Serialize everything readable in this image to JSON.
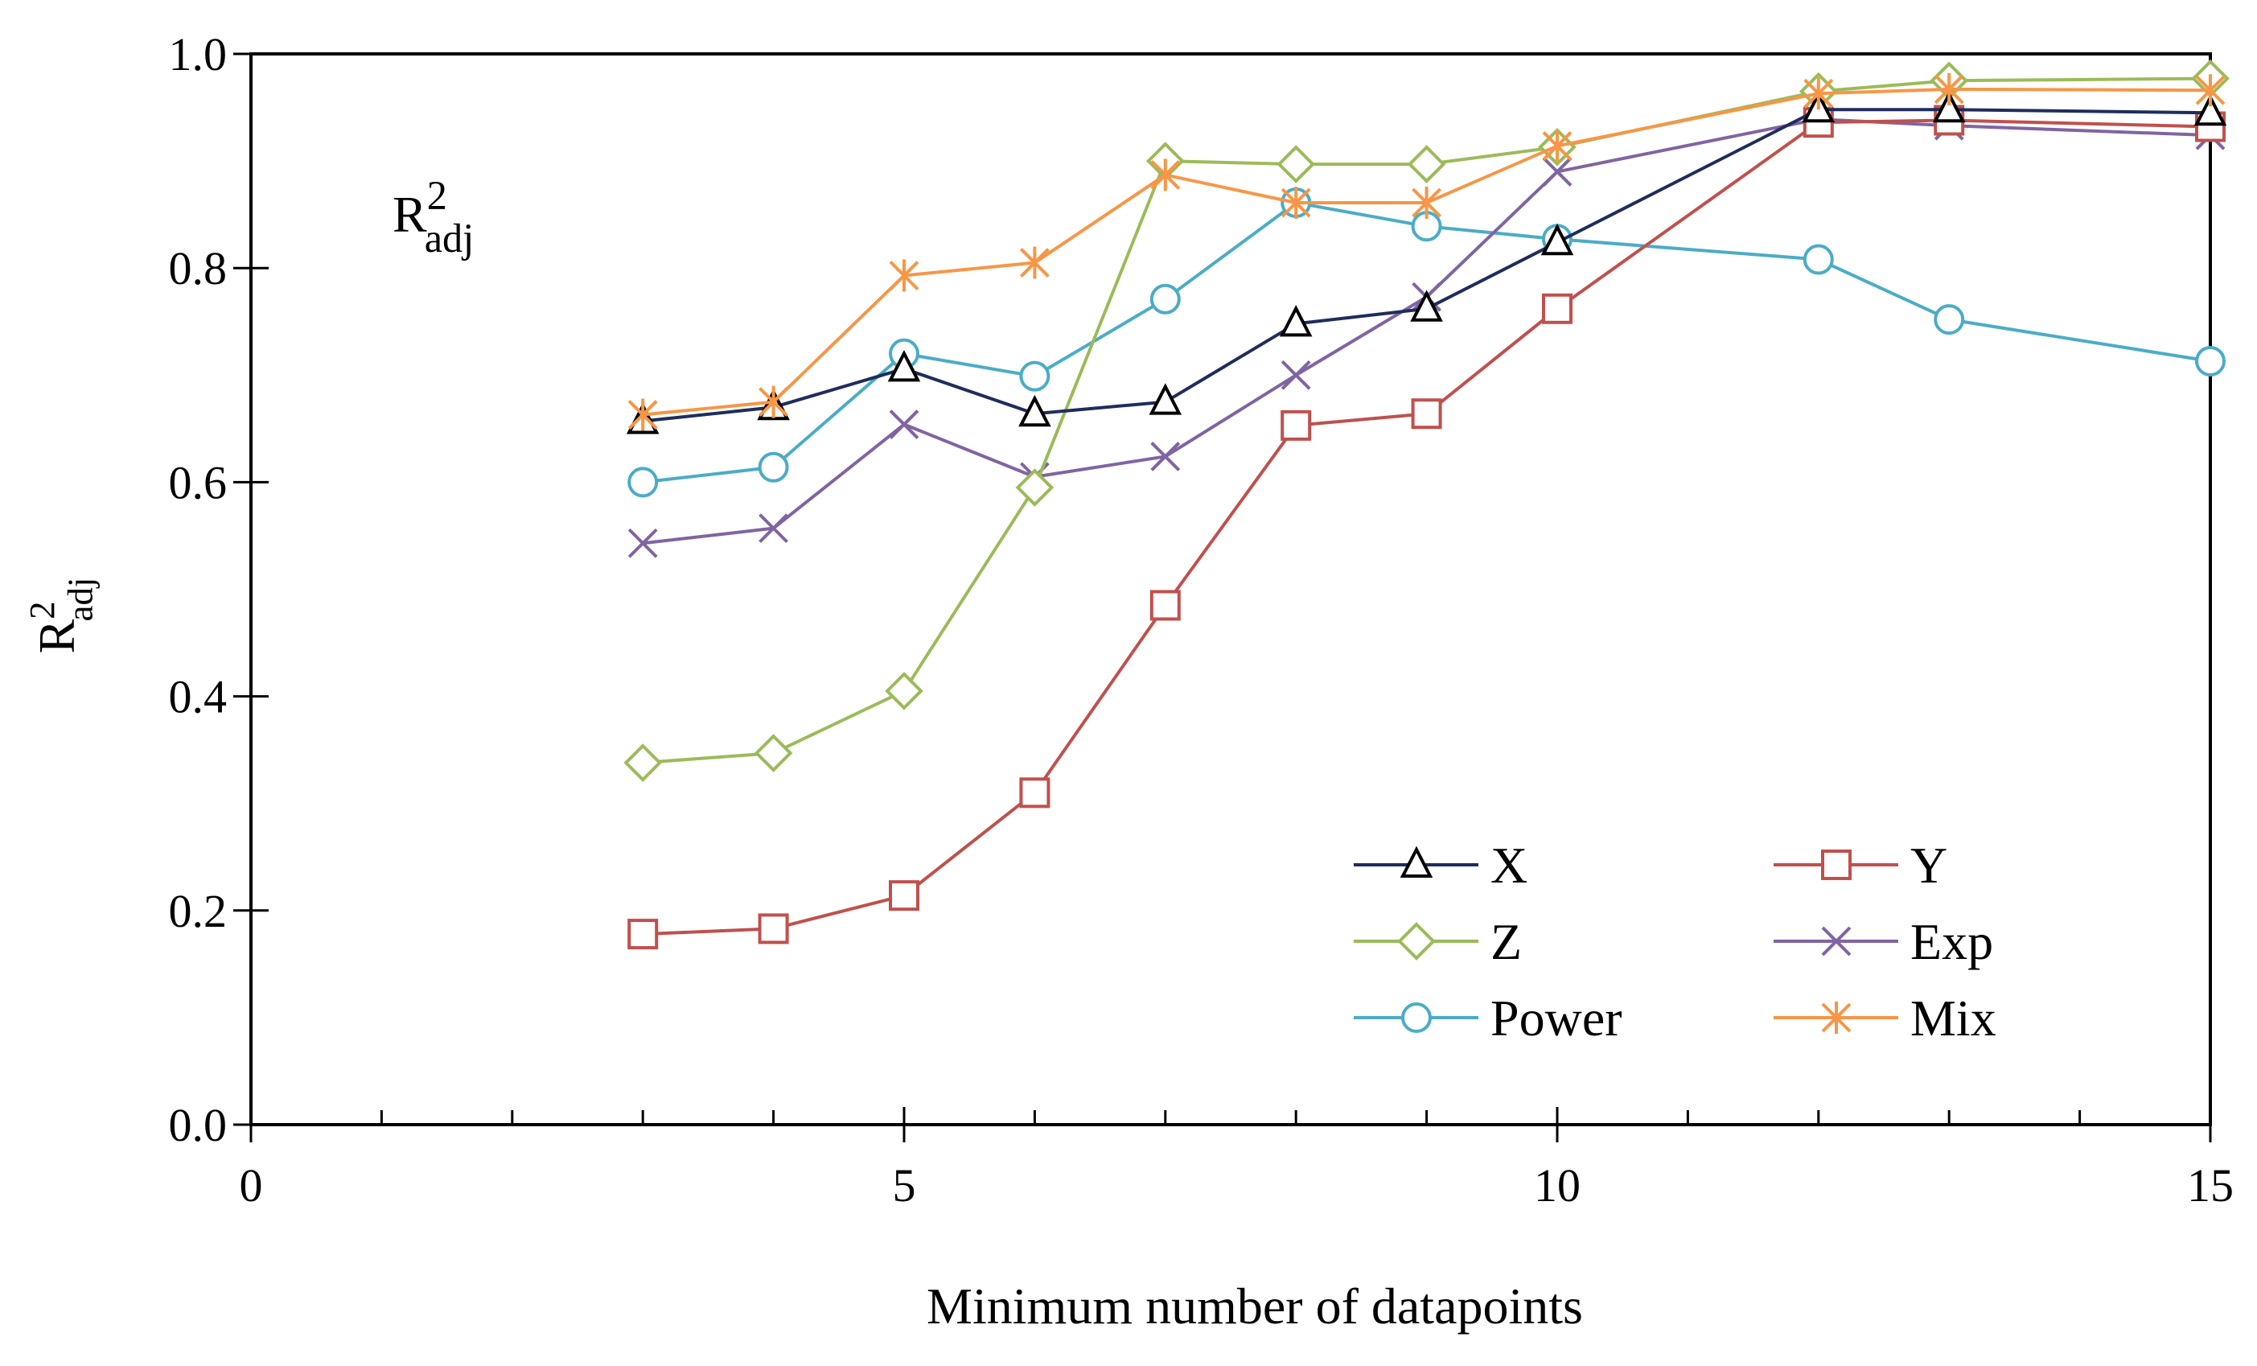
{
  "chart_data": {
    "type": "line",
    "title": "",
    "xlabel": "Minimum number of datapoints",
    "ylabel": {
      "base": "R",
      "sup": "2",
      "sub": "adj"
    },
    "annotation": {
      "base": "R",
      "sup": "2",
      "sub": "adj"
    },
    "xlim": [
      0,
      15
    ],
    "ylim": [
      0.0,
      1.0
    ],
    "xticks": [
      0,
      5,
      10,
      15
    ],
    "xtick_labels": [
      "0",
      "5",
      "10",
      "15"
    ],
    "yticks": [
      0.0,
      0.2,
      0.4,
      0.6,
      0.8,
      1.0
    ],
    "ytick_labels": [
      "0.0",
      "0.2",
      "0.4",
      "0.6",
      "0.8",
      "1.0"
    ],
    "grid": false,
    "legend_position": "bottom-right",
    "x": [
      3,
      4,
      5,
      6,
      7,
      8,
      9,
      10,
      12,
      13,
      15
    ],
    "series": [
      {
        "name": "X",
        "color": "#1f2d5c",
        "marker": "triangle",
        "values": [
          0.657,
          0.67,
          0.706,
          0.664,
          0.675,
          0.748,
          0.762,
          0.824,
          0.948,
          0.948,
          0.945
        ]
      },
      {
        "name": "Y",
        "color": "#c0504d",
        "marker": "square",
        "values": [
          0.178,
          0.183,
          0.214,
          0.31,
          0.485,
          0.653,
          0.664,
          0.762,
          0.936,
          0.938,
          0.932
        ]
      },
      {
        "name": "Z",
        "color": "#9bbb59",
        "marker": "diamond",
        "values": [
          0.338,
          0.347,
          0.405,
          0.595,
          0.9,
          0.897,
          0.897,
          0.913,
          0.965,
          0.975,
          0.977
        ]
      },
      {
        "name": "Exp",
        "color": "#8064a2",
        "marker": "x",
        "values": [
          0.543,
          0.557,
          0.654,
          0.605,
          0.624,
          0.7,
          0.773,
          0.89,
          0.939,
          0.933,
          0.924
        ]
      },
      {
        "name": "Power",
        "color": "#4bacc6",
        "marker": "circle",
        "values": [
          0.6,
          0.614,
          0.72,
          0.699,
          0.771,
          0.861,
          0.839,
          0.827,
          0.808,
          0.752,
          0.713
        ]
      },
      {
        "name": "Mix",
        "color": "#f79646",
        "marker": "asterisk",
        "values": [
          0.663,
          0.675,
          0.793,
          0.805,
          0.887,
          0.861,
          0.861,
          0.914,
          0.963,
          0.967,
          0.966
        ]
      }
    ]
  }
}
